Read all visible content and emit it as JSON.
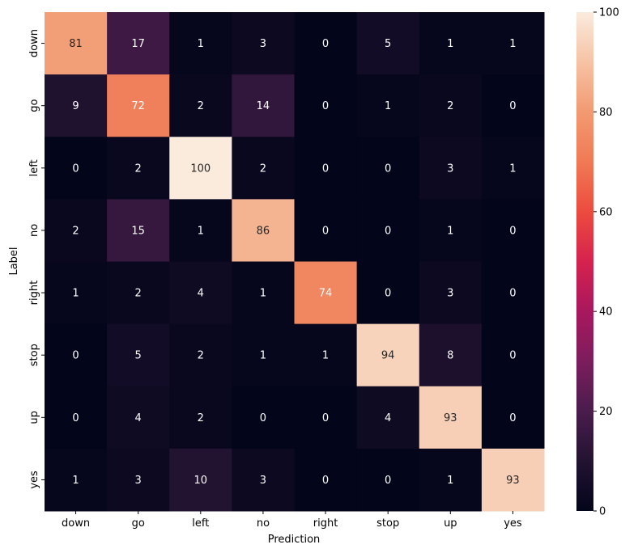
{
  "chart_data": {
    "type": "heatmap",
    "title": "",
    "xlabel": "Prediction",
    "ylabel": "Label",
    "x_categories": [
      "down",
      "go",
      "left",
      "no",
      "right",
      "stop",
      "up",
      "yes"
    ],
    "y_categories": [
      "down",
      "go",
      "left",
      "no",
      "right",
      "stop",
      "up",
      "yes"
    ],
    "values": [
      [
        81,
        17,
        1,
        3,
        0,
        5,
        1,
        1
      ],
      [
        9,
        72,
        2,
        14,
        0,
        1,
        2,
        0
      ],
      [
        0,
        2,
        100,
        2,
        0,
        0,
        3,
        1
      ],
      [
        2,
        15,
        1,
        86,
        0,
        0,
        1,
        0
      ],
      [
        1,
        2,
        4,
        1,
        74,
        0,
        3,
        0
      ],
      [
        0,
        5,
        2,
        1,
        1,
        94,
        8,
        0
      ],
      [
        0,
        4,
        2,
        0,
        0,
        4,
        93,
        0
      ],
      [
        1,
        3,
        10,
        3,
        0,
        0,
        1,
        93
      ]
    ],
    "colorbar": {
      "range": [
        0,
        100
      ],
      "ticks": [
        0,
        20,
        40,
        60,
        80,
        100
      ],
      "colormap": "rocket"
    },
    "annotations": true,
    "grid": false
  }
}
